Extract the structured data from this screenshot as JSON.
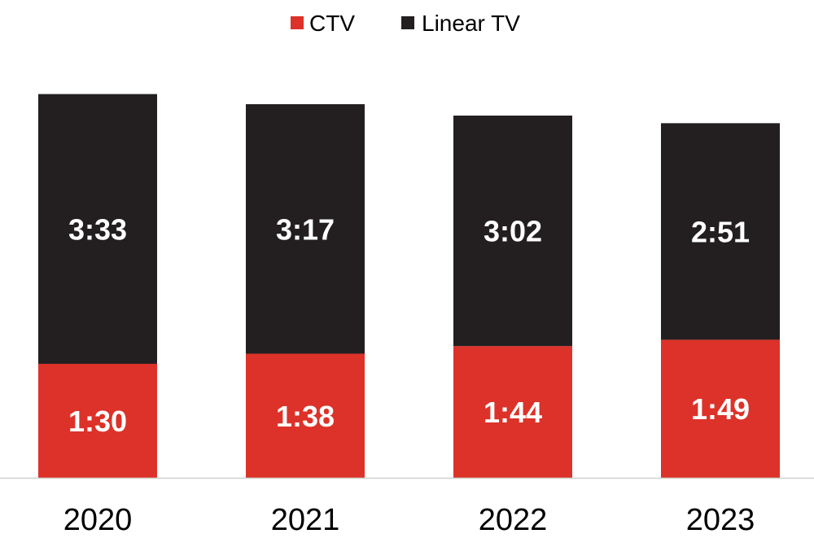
{
  "chart_data": {
    "type": "bar",
    "stacked": true,
    "title": "",
    "xlabel": "",
    "ylabel": "",
    "categories": [
      "2020",
      "2021",
      "2022",
      "2023"
    ],
    "series": [
      {
        "name": "CTV",
        "color": "#DC3229",
        "values_minutes": [
          90,
          98,
          104,
          109
        ],
        "labels": [
          "1:30",
          "1:38",
          "1:44",
          "1:49"
        ]
      },
      {
        "name": "Linear TV",
        "color": "#231F20",
        "values_minutes": [
          213,
          197,
          182,
          171
        ],
        "labels": [
          "3:33",
          "3:17",
          "3:02",
          "2:51"
        ]
      }
    ],
    "ylim": [
      0,
      340
    ],
    "grid": false,
    "legend_position": "top-center"
  }
}
